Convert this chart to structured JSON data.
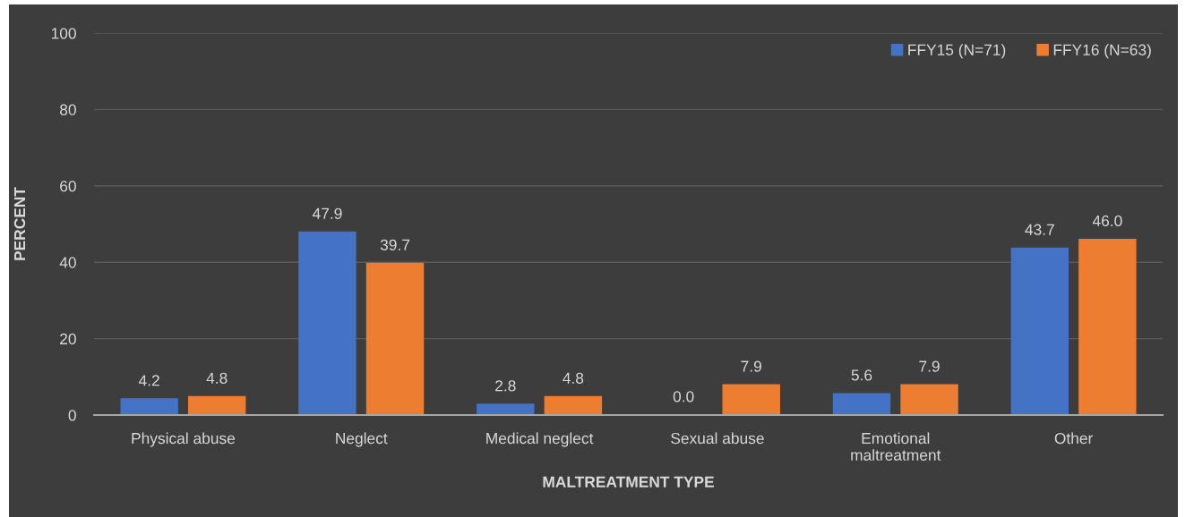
{
  "chart_data": {
    "type": "bar",
    "xlabel": "MALTREATMENT TYPE",
    "ylabel": "PERCENT",
    "categories": [
      "Physical abuse",
      "Neglect",
      "Medical neglect",
      "Sexual abuse",
      "Emotional\nmaltreatment",
      "Other"
    ],
    "series": [
      {
        "name": "FFY15 (N=71)",
        "color": "#4472c4",
        "values": [
          4.2,
          47.9,
          2.8,
          0.0,
          5.6,
          43.7
        ],
        "value_labels": [
          "4.2",
          "47.9",
          "2.8",
          "0.0",
          "5.6",
          "43.7"
        ]
      },
      {
        "name": "FFY16 (N=63)",
        "color": "#ed7d31",
        "values": [
          4.8,
          39.7,
          4.8,
          7.9,
          7.9,
          46.0
        ],
        "value_labels": [
          "4.8",
          "39.7",
          "4.8",
          "7.9",
          "7.9",
          "46.0"
        ]
      }
    ],
    "ylim": [
      0,
      100
    ],
    "yticks": [
      0,
      20,
      40,
      60,
      80,
      100
    ],
    "grid": "y",
    "legend": "top right"
  }
}
